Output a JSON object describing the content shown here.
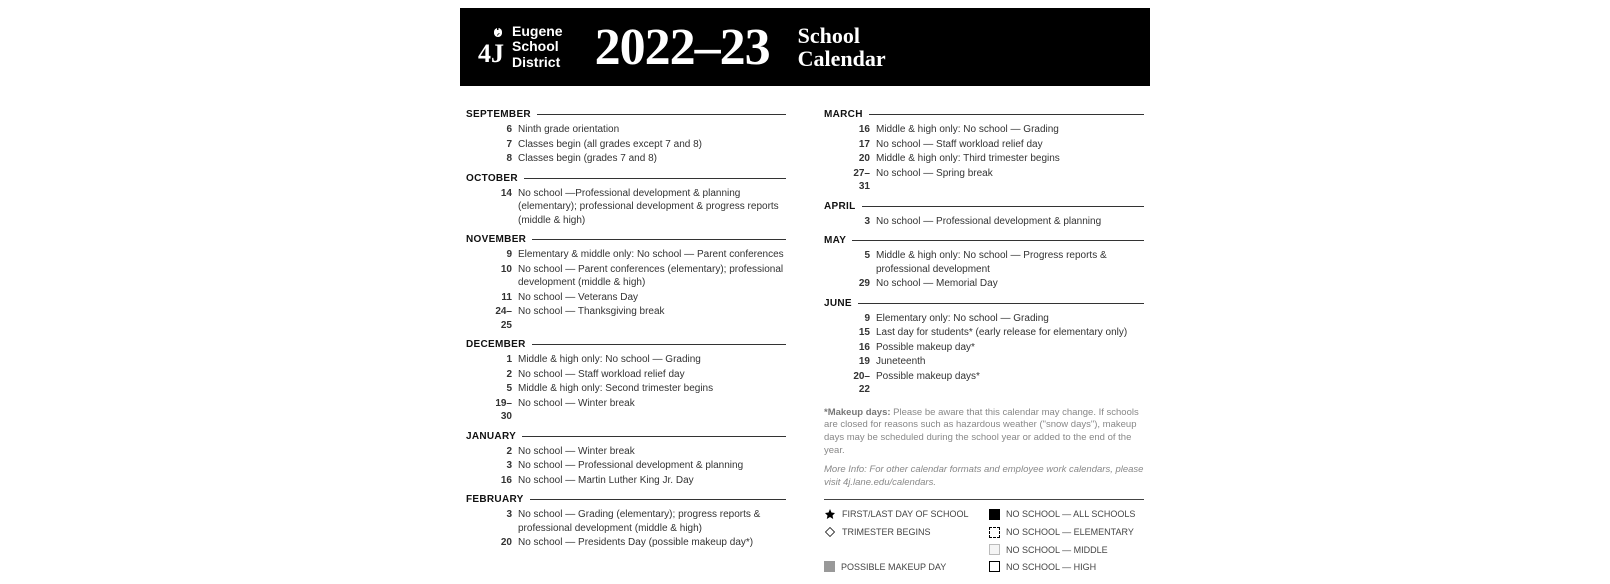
{
  "header": {
    "district_line1": "Eugene",
    "district_line2": "School",
    "district_line3": "District",
    "year": "2022–23",
    "sc_line1": "School",
    "sc_line2": "Calendar"
  },
  "left_months": [
    {
      "name": "SEPTEMBER",
      "events": [
        {
          "date": "6",
          "desc": "Ninth grade orientation"
        },
        {
          "date": "7",
          "desc": "Classes begin (all grades except 7 and 8)"
        },
        {
          "date": "8",
          "desc": "Classes begin (grades 7 and 8)"
        }
      ]
    },
    {
      "name": "OCTOBER",
      "events": [
        {
          "date": "14",
          "desc": "No school —Professional development & planning (elementary); professional development & progress reports (middle & high)"
        }
      ]
    },
    {
      "name": "NOVEMBER",
      "events": [
        {
          "date": "9",
          "desc": "Elementary & middle only: No school — Parent conferences"
        },
        {
          "date": "10",
          "desc": "No school — Parent conferences (elementary); professional development (middle & high)"
        },
        {
          "date": "11",
          "desc": "No school — Veterans Day"
        },
        {
          "date": "24–25",
          "desc": "No school — Thanksgiving break"
        }
      ]
    },
    {
      "name": "DECEMBER",
      "events": [
        {
          "date": "1",
          "desc": "Middle & high only: No school — Grading"
        },
        {
          "date": "2",
          "desc": "No school — Staff workload relief day"
        },
        {
          "date": "5",
          "desc": "Middle & high only: Second trimester begins"
        },
        {
          "date": "19–30",
          "desc": "No school — Winter break"
        }
      ]
    },
    {
      "name": "JANUARY",
      "events": [
        {
          "date": "2",
          "desc": "No school — Winter break"
        },
        {
          "date": "3",
          "desc": "No school — Professional development & planning"
        },
        {
          "date": "16",
          "desc": "No school — Martin Luther King Jr. Day"
        }
      ]
    },
    {
      "name": "FEBRUARY",
      "events": [
        {
          "date": "3",
          "desc": "No school — Grading (elementary); progress reports & professional development (middle & high)"
        },
        {
          "date": "20",
          "desc": "No school — Presidents Day (possible makeup day*)"
        }
      ]
    }
  ],
  "right_months": [
    {
      "name": "MARCH",
      "events": [
        {
          "date": "16",
          "desc": "Middle & high only: No school — Grading"
        },
        {
          "date": "17",
          "desc": "No school — Staff workload relief day"
        },
        {
          "date": "20",
          "desc": "Middle & high only: Third trimester begins"
        },
        {
          "date": "27–31",
          "desc": "No school — Spring break"
        }
      ]
    },
    {
      "name": "APRIL",
      "events": [
        {
          "date": "3",
          "desc": "No school — Professional development & planning"
        }
      ]
    },
    {
      "name": "MAY",
      "events": [
        {
          "date": "5",
          "desc": "Middle & high only: No school — Progress reports & professional development"
        },
        {
          "date": "29",
          "desc": "No school — Memorial Day"
        }
      ]
    },
    {
      "name": "JUNE",
      "events": [
        {
          "date": "9",
          "desc": "Elementary only: No school — Grading"
        },
        {
          "date": "15",
          "desc": "Last day for students* (early release for elementary only)"
        },
        {
          "date": "16",
          "desc": "Possible makeup day*"
        },
        {
          "date": "19",
          "desc": "Juneteenth"
        },
        {
          "date": "20–22",
          "desc": "Possible makeup days*"
        }
      ]
    }
  ],
  "footnote_makeup_label": "*Makeup days:",
  "footnote_makeup_text": " Please be aware that this calendar may change. If schools are closed for reasons such as hazardous weather (\"snow days\"), makeup days may be scheduled during the school year or added to the end of the year.",
  "footnote_moreinfo": "More Info: For other calendar formats and employee work calendars, please visit 4j.lane.edu/calendars.",
  "legend": {
    "star": "FIRST/LAST DAY OF SCHOOL",
    "diamond": "TRIMESTER BEGINS",
    "gray": "POSSIBLE MAKEUP DAY",
    "fill": "NO SCHOOL — ALL SCHOOLS",
    "dash": "NO SCHOOL — ELEMENTARY",
    "mid": "NO SCHOOL — MIDDLE",
    "high": "NO SCHOOL — HIGH"
  }
}
